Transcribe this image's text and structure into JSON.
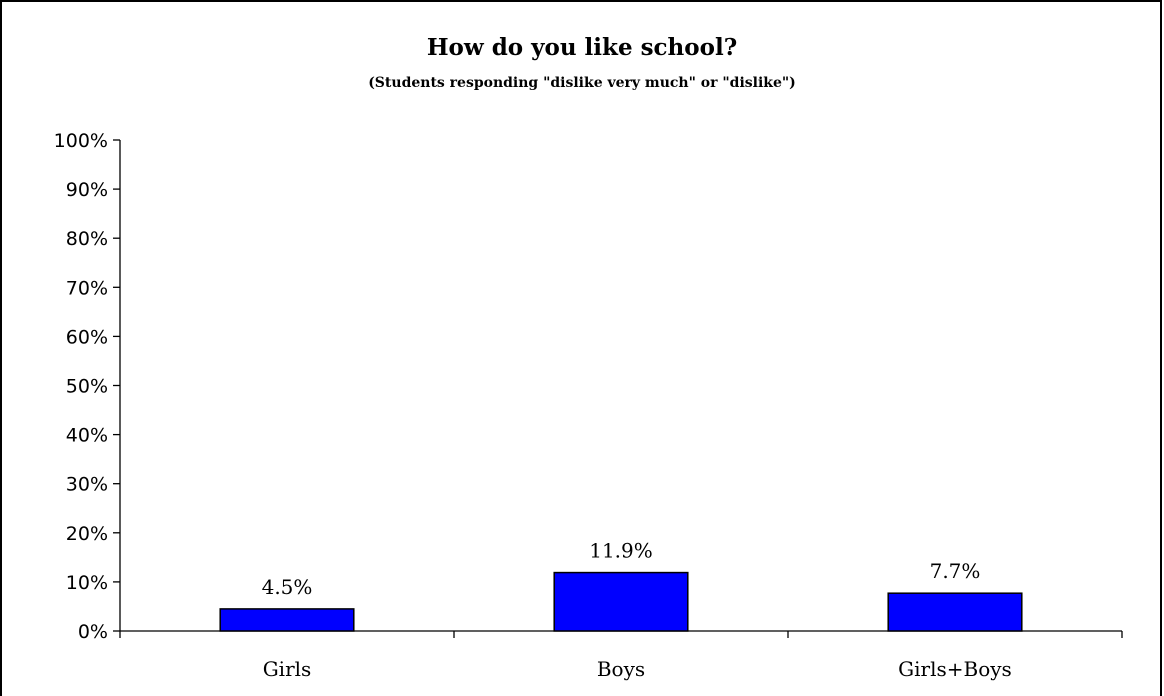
{
  "chart_data": {
    "type": "bar",
    "title": "How do you like school?",
    "subtitle": "(Students responding \"dislike very much\" or \"dislike\")",
    "categories": [
      "Girls",
      "Boys",
      "Girls+Boys"
    ],
    "values": [
      4.5,
      11.9,
      7.7
    ],
    "data_labels": [
      "4.5%",
      "11.9%",
      "7.7%"
    ],
    "xlabel": "",
    "ylabel": "",
    "ylim": [
      0,
      100
    ],
    "yticks": [
      0,
      10,
      20,
      30,
      40,
      50,
      60,
      70,
      80,
      90,
      100
    ],
    "ytick_labels": [
      "0%",
      "10%",
      "20%",
      "30%",
      "40%",
      "50%",
      "60%",
      "70%",
      "80%",
      "90%",
      "100%"
    ],
    "grid": false,
    "legend": "none",
    "bar_color": "#0000ff",
    "bar_edge_color": "#000000"
  }
}
